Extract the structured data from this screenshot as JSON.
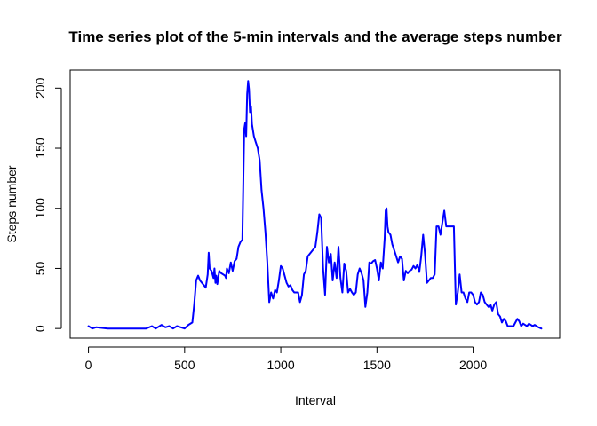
{
  "chart_data": {
    "type": "line",
    "title": "Time series plot of the 5-min intervals and the average steps number",
    "xlabel": "Interval",
    "ylabel": "Steps number",
    "xlim": [
      -95,
      2450
    ],
    "ylim": [
      -8,
      215
    ],
    "xticks": [
      0,
      500,
      1000,
      1500,
      2000
    ],
    "yticks": [
      0,
      50,
      100,
      150,
      200
    ],
    "grid": false,
    "line_color": "#0000ff",
    "series": [
      {
        "x": [
          0,
          20,
          40,
          100,
          200,
          300,
          330,
          350,
          360,
          380,
          400,
          420,
          440,
          460,
          480,
          500,
          520,
          540,
          550,
          560,
          570,
          575,
          580,
          590,
          600,
          610,
          620,
          625,
          630,
          640,
          650,
          655,
          660,
          665,
          670,
          680,
          690,
          700,
          710,
          715,
          720,
          730,
          740,
          750,
          760,
          770,
          780,
          790,
          800,
          810,
          815,
          820,
          825,
          830,
          835,
          840,
          845,
          850,
          860,
          870,
          880,
          890,
          900,
          910,
          920,
          930,
          940,
          950,
          960,
          970,
          980,
          990,
          1000,
          1010,
          1020,
          1030,
          1040,
          1050,
          1060,
          1070,
          1080,
          1090,
          1100,
          1110,
          1120,
          1130,
          1140,
          1150,
          1160,
          1170,
          1180,
          1190,
          1200,
          1210,
          1220,
          1230,
          1240,
          1250,
          1260,
          1270,
          1280,
          1290,
          1300,
          1310,
          1320,
          1330,
          1340,
          1350,
          1360,
          1370,
          1380,
          1390,
          1400,
          1410,
          1420,
          1430,
          1440,
          1450,
          1460,
          1470,
          1480,
          1490,
          1500,
          1510,
          1520,
          1530,
          1540,
          1545,
          1550,
          1555,
          1560,
          1570,
          1580,
          1590,
          1600,
          1610,
          1620,
          1630,
          1640,
          1650,
          1660,
          1670,
          1680,
          1690,
          1700,
          1710,
          1720,
          1730,
          1740,
          1750,
          1760,
          1770,
          1780,
          1790,
          1800,
          1810,
          1820,
          1830,
          1840,
          1850,
          1860,
          1870,
          1880,
          1890,
          1900,
          1910,
          1920,
          1930,
          1940,
          1950,
          1960,
          1970,
          1980,
          1990,
          2000,
          2010,
          2020,
          2030,
          2040,
          2050,
          2060,
          2070,
          2080,
          2090,
          2100,
          2110,
          2120,
          2130,
          2140,
          2150,
          2160,
          2170,
          2180,
          2190,
          2200,
          2210,
          2220,
          2230,
          2240,
          2250,
          2260,
          2270,
          2280,
          2290,
          2300,
          2310,
          2320,
          2330,
          2340,
          2355
        ],
        "values": [
          2,
          0,
          1,
          0,
          0,
          0,
          2,
          0,
          1,
          3,
          1,
          2,
          0,
          2,
          1,
          0,
          3,
          5,
          20,
          40,
          44,
          42,
          40,
          38,
          36,
          34,
          45,
          63,
          50,
          48,
          42,
          50,
          38,
          44,
          37,
          48,
          46,
          45,
          44,
          42,
          50,
          46,
          55,
          48,
          56,
          58,
          68,
          72,
          74,
          166,
          171,
          160,
          195,
          206,
          199,
          180,
          185,
          170,
          160,
          155,
          150,
          140,
          115,
          100,
          80,
          55,
          22,
          30,
          25,
          32,
          30,
          40,
          52,
          50,
          44,
          38,
          35,
          36,
          32,
          30,
          30,
          30,
          22,
          28,
          45,
          48,
          60,
          62,
          64,
          66,
          68,
          80,
          95,
          92,
          50,
          28,
          68,
          55,
          62,
          40,
          55,
          42,
          68,
          42,
          30,
          54,
          48,
          30,
          33,
          30,
          28,
          30,
          45,
          50,
          46,
          40,
          18,
          30,
          55,
          54,
          56,
          57,
          50,
          40,
          55,
          50,
          75,
          98,
          100,
          85,
          80,
          78,
          70,
          65,
          60,
          55,
          60,
          58,
          40,
          48,
          46,
          48,
          49,
          52,
          50,
          53,
          47,
          60,
          78,
          62,
          38,
          40,
          42,
          42,
          45,
          85,
          85,
          78,
          88,
          98,
          85,
          85,
          85,
          85,
          85,
          20,
          30,
          45,
          30,
          30,
          25,
          22,
          30,
          30,
          28,
          22,
          20,
          22,
          30,
          28,
          22,
          20,
          18,
          20,
          15,
          20,
          22,
          12,
          10,
          5,
          8,
          6,
          2,
          2,
          2,
          2,
          5,
          8,
          6,
          2,
          4,
          3,
          2,
          4,
          3,
          2,
          3,
          2,
          1,
          0
        ]
      }
    ]
  }
}
